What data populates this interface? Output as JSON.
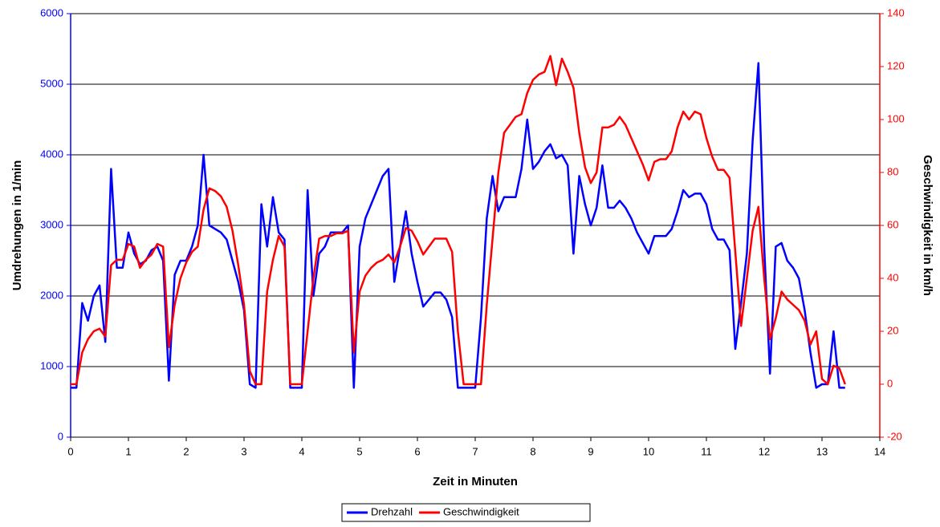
{
  "chart_data": {
    "type": "line",
    "x_label": "Zeit in Minuten",
    "y_label": "Umdrehungen in 1/min",
    "y2_label": "Geschwindigkeit in km/h",
    "x": [
      0,
      0.1,
      0.2,
      0.3,
      0.4,
      0.5,
      0.6,
      0.7,
      0.8,
      0.9,
      1,
      1.1,
      1.2,
      1.3,
      1.4,
      1.5,
      1.6,
      1.7,
      1.8,
      1.9,
      2,
      2.1,
      2.2,
      2.3,
      2.4,
      2.5,
      2.6,
      2.7,
      2.8,
      2.9,
      3,
      3.1,
      3.2,
      3.3,
      3.4,
      3.5,
      3.6,
      3.7,
      3.8,
      3.9,
      4,
      4.1,
      4.2,
      4.3,
      4.4,
      4.5,
      4.6,
      4.7,
      4.8,
      4.9,
      5,
      5.1,
      5.2,
      5.3,
      5.4,
      5.5,
      5.6,
      5.7,
      5.8,
      5.9,
      6,
      6.1,
      6.2,
      6.3,
      6.4,
      6.5,
      6.6,
      6.7,
      6.8,
      6.9,
      7,
      7.1,
      7.2,
      7.3,
      7.4,
      7.5,
      7.6,
      7.7,
      7.8,
      7.9,
      8,
      8.1,
      8.2,
      8.3,
      8.4,
      8.5,
      8.6,
      8.7,
      8.8,
      8.9,
      9,
      9.1,
      9.2,
      9.3,
      9.4,
      9.5,
      9.6,
      9.7,
      9.8,
      9.9,
      10,
      10.1,
      10.2,
      10.3,
      10.4,
      10.5,
      10.6,
      10.7,
      10.8,
      10.9,
      11,
      11.1,
      11.2,
      11.3,
      11.4,
      11.5,
      11.6,
      11.7,
      11.8,
      11.9,
      12,
      12.1,
      12.2,
      12.3,
      12.4,
      12.5,
      12.6,
      12.7,
      12.8,
      12.9,
      13,
      13.1,
      13.2,
      13.3,
      13.4
    ],
    "series": [
      {
        "name": "Drehzahl",
        "color": "#0000ff",
        "axis": "y",
        "values": [
          700,
          700,
          1900,
          1650,
          2000,
          2150,
          1350,
          3800,
          2400,
          2400,
          2900,
          2600,
          2450,
          2500,
          2650,
          2700,
          2500,
          800,
          2300,
          2500,
          2500,
          2700,
          3000,
          4000,
          3000,
          2950,
          2900,
          2800,
          2500,
          2200,
          1800,
          750,
          700,
          3300,
          2700,
          3400,
          2900,
          2800,
          700,
          700,
          700,
          3500,
          2000,
          2600,
          2700,
          2900,
          2900,
          2900,
          3000,
          700,
          2700,
          3100,
          3300,
          3500,
          3700,
          3800,
          2200,
          2700,
          3200,
          2600,
          2200,
          1850,
          1950,
          2050,
          2050,
          1950,
          1700,
          700,
          700,
          700,
          700,
          1700,
          3100,
          3700,
          3200,
          3400,
          3400,
          3400,
          3800,
          4500,
          3800,
          3900,
          4050,
          4150,
          3950,
          4000,
          3850,
          2600,
          3700,
          3300,
          3000,
          3250,
          3850,
          3250,
          3250,
          3350,
          3250,
          3100,
          2900,
          2750,
          2600,
          2850,
          2850,
          2850,
          2950,
          3200,
          3500,
          3400,
          3450,
          3450,
          3300,
          2950,
          2800,
          2800,
          2650,
          1250,
          1900,
          2600,
          4200,
          5300,
          2700,
          900,
          2700,
          2750,
          2500,
          2400,
          2250,
          1800,
          1200,
          700,
          750,
          750,
          1500,
          700,
          700
        ]
      },
      {
        "name": "Geschwindigkeit",
        "color": "#ff0000",
        "axis": "y2",
        "values": [
          0,
          0,
          12,
          17,
          20,
          21,
          18,
          45,
          47,
          47,
          53,
          52,
          44,
          47,
          49,
          53,
          52,
          14,
          30,
          40,
          46,
          50,
          52,
          66,
          74,
          73,
          71,
          67,
          58,
          45,
          30,
          5,
          0,
          0,
          35,
          47,
          56,
          52,
          0,
          0,
          0,
          20,
          40,
          55,
          56,
          56,
          57,
          57,
          58,
          12,
          35,
          41,
          44,
          46,
          47,
          49,
          46,
          52,
          59,
          58,
          54,
          49,
          52,
          55,
          55,
          55,
          50,
          20,
          0,
          0,
          0,
          0,
          30,
          55,
          80,
          95,
          98,
          101,
          102,
          110,
          115,
          117,
          118,
          124,
          113,
          123,
          118,
          112,
          95,
          82,
          76,
          80,
          97,
          97,
          98,
          101,
          98,
          93,
          88,
          83,
          77,
          84,
          85,
          85,
          88,
          97,
          103,
          100,
          103,
          102,
          93,
          86,
          81,
          81,
          78,
          50,
          22,
          40,
          58,
          67,
          40,
          17,
          25,
          35,
          32,
          30,
          28,
          24,
          15,
          20,
          2,
          0,
          7,
          6,
          0
        ]
      }
    ],
    "xlim": [
      0,
      14
    ],
    "xticks": [
      0,
      1,
      2,
      3,
      4,
      5,
      6,
      7,
      8,
      9,
      10,
      11,
      12,
      13,
      14
    ],
    "ylim": [
      0,
      6000
    ],
    "yticks": [
      0,
      1000,
      2000,
      3000,
      4000,
      5000,
      6000
    ],
    "y2lim": [
      -20,
      140
    ],
    "y2ticks": [
      -20,
      0,
      20,
      40,
      60,
      80,
      100,
      120,
      140
    ],
    "grid": true,
    "legend": "bottom"
  }
}
